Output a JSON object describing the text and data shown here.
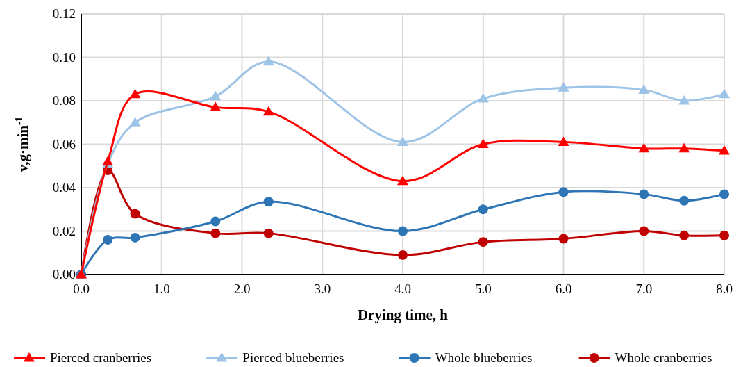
{
  "chart_data": {
    "type": "line",
    "xlabel": "Drying time, h",
    "ylabel": "v,g·min$^{-1}$",
    "xlim": [
      0,
      8
    ],
    "ylim": [
      0,
      0.12
    ],
    "xticks": [
      {
        "value": 0,
        "label": "0.0"
      },
      {
        "value": 1,
        "label": "1.0"
      },
      {
        "value": 2,
        "label": "2.0"
      },
      {
        "value": 3,
        "label": "3.0"
      },
      {
        "value": 4,
        "label": "4.0"
      },
      {
        "value": 5,
        "label": "5.0"
      },
      {
        "value": 6,
        "label": "6.0"
      },
      {
        "value": 7,
        "label": "7.0"
      },
      {
        "value": 8,
        "label": "8.0"
      }
    ],
    "yticks": [
      {
        "value": 0,
        "label": "0.00"
      },
      {
        "value": 0.02,
        "label": "0.02"
      },
      {
        "value": 0.04,
        "label": "0.04"
      },
      {
        "value": 0.06,
        "label": "0.06"
      },
      {
        "value": 0.08,
        "label": "0.08"
      },
      {
        "value": 0.1,
        "label": "0.10"
      },
      {
        "value": 0.12,
        "label": "0.12"
      }
    ],
    "x": [
      0,
      0.33,
      0.67,
      1.67,
      2.33,
      4,
      5,
      6,
      7,
      7.5,
      8
    ],
    "grid": true,
    "legend": "bottom",
    "line_style": "solid",
    "series": [
      {
        "name": "Pierced cranberries",
        "color": "#ff0000",
        "marker": "triangle",
        "values": [
          0,
          0.052,
          0.083,
          0.077,
          0.075,
          0.043,
          0.06,
          0.061,
          0.058,
          0.058,
          0.057
        ]
      },
      {
        "name": "Pierced blueberries",
        "color": "#9dc3e6",
        "marker": "triangle",
        "values": [
          0,
          0.051,
          0.07,
          0.082,
          0.098,
          0.061,
          0.081,
          0.086,
          0.085,
          0.08,
          0.083
        ]
      },
      {
        "name": "Whole blueberries",
        "color": "#2e75b6",
        "marker": "circle",
        "values": [
          0,
          0.016,
          0.017,
          0.0245,
          0.0335,
          0.02,
          0.03,
          0.038,
          0.037,
          0.034,
          0.037
        ]
      },
      {
        "name": "Whole cranberries",
        "color": "#c00000",
        "marker": "circle",
        "values": [
          0,
          0.048,
          0.028,
          0.019,
          0.019,
          0.009,
          0.015,
          0.0165,
          0.02,
          0.018,
          0.018
        ]
      }
    ]
  }
}
